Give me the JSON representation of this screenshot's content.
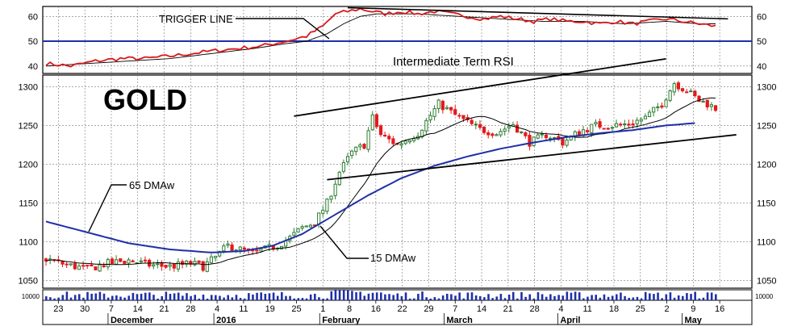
{
  "chart_data": {
    "type": "candlestick",
    "title": "GOLD",
    "colors": {
      "up": "#2e7d32",
      "down": "#e31a1c",
      "ma65": "#1f2fa8",
      "ma15": "#000000",
      "rsi": "#d7191c",
      "trigger": "#000000",
      "volume": "#1f2fa8",
      "rsi_level": "#1f2fa8"
    },
    "rsi_panel": {
      "label": "Intermediate Term RSI",
      "trigger_label": "TRIGGER LINE",
      "ticks": [
        "40",
        "50",
        "60"
      ],
      "ylim": [
        37,
        64
      ],
      "level": 50
    },
    "price_panel": {
      "ticks": [
        "1050",
        "1100",
        "1150",
        "1200",
        "1250",
        "1300"
      ],
      "ylim": [
        1040,
        1315
      ],
      "annotations": {
        "ma65": "65 DMAw",
        "ma15": "15 DMAw"
      }
    },
    "volume_panel": {
      "tick_left": "10000",
      "tick_right": "10000"
    },
    "x_axis": {
      "day_labels": [
        "23",
        "30",
        "7",
        "14",
        "21",
        "28",
        "4",
        "11",
        "19",
        "25",
        "1",
        "8",
        "16",
        "22",
        "29",
        "7",
        "14",
        "21",
        "28",
        "4",
        "11",
        "18",
        "25",
        "2",
        "9",
        "16"
      ],
      "month_labels": [
        "December",
        "2016",
        "February",
        "March",
        "April",
        "May"
      ]
    },
    "ohlc_anchors": [
      [
        0,
        1078
      ],
      [
        5,
        1070
      ],
      [
        10,
        1065
      ],
      [
        15,
        1072
      ],
      [
        20,
        1076
      ],
      [
        25,
        1070
      ],
      [
        30,
        1068
      ],
      [
        35,
        1072
      ],
      [
        38,
        1068
      ],
      [
        41,
        1080
      ],
      [
        44,
        1095
      ],
      [
        47,
        1090
      ],
      [
        50,
        1085
      ],
      [
        53,
        1090
      ],
      [
        56,
        1095
      ],
      [
        59,
        1105
      ],
      [
        62,
        1118
      ],
      [
        65,
        1125
      ],
      [
        68,
        1150
      ],
      [
        71,
        1190
      ],
      [
        74,
        1215
      ],
      [
        77,
        1225
      ],
      [
        79,
        1260
      ],
      [
        81,
        1238
      ],
      [
        85,
        1225
      ],
      [
        90,
        1240
      ],
      [
        95,
        1278
      ],
      [
        100,
        1260
      ],
      [
        105,
        1245
      ],
      [
        109,
        1240
      ],
      [
        113,
        1252
      ],
      [
        117,
        1228
      ],
      [
        121,
        1238
      ],
      [
        125,
        1228
      ],
      [
        129,
        1242
      ],
      [
        133,
        1250
      ],
      [
        137,
        1250
      ],
      [
        141,
        1252
      ],
      [
        145,
        1260
      ],
      [
        149,
        1278
      ],
      [
        152,
        1305
      ],
      [
        155,
        1295
      ],
      [
        158,
        1282
      ],
      [
        160,
        1278
      ],
      [
        162,
        1272
      ]
    ],
    "ma65_anchors": [
      [
        0,
        1126
      ],
      [
        10,
        1112
      ],
      [
        20,
        1098
      ],
      [
        30,
        1090
      ],
      [
        40,
        1086
      ],
      [
        48,
        1088
      ],
      [
        55,
        1095
      ],
      [
        62,
        1110
      ],
      [
        70,
        1135
      ],
      [
        78,
        1160
      ],
      [
        86,
        1182
      ],
      [
        94,
        1198
      ],
      [
        102,
        1210
      ],
      [
        110,
        1220
      ],
      [
        118,
        1228
      ],
      [
        126,
        1235
      ],
      [
        134,
        1240
      ],
      [
        142,
        1244
      ],
      [
        150,
        1250
      ],
      [
        157,
        1253
      ]
    ],
    "rsi_anchors": [
      [
        0,
        41
      ],
      [
        6,
        40
      ],
      [
        12,
        42
      ],
      [
        18,
        43
      ],
      [
        24,
        43
      ],
      [
        30,
        44
      ],
      [
        35,
        45
      ],
      [
        40,
        46
      ],
      [
        46,
        47
      ],
      [
        52,
        48
      ],
      [
        58,
        50
      ],
      [
        63,
        52
      ],
      [
        67,
        56
      ],
      [
        70,
        61
      ],
      [
        73,
        62
      ],
      [
        76,
        63
      ],
      [
        79,
        62
      ],
      [
        82,
        61
      ],
      [
        86,
        62
      ],
      [
        90,
        61
      ],
      [
        94,
        62
      ],
      [
        98,
        61
      ],
      [
        102,
        60
      ],
      [
        106,
        59
      ],
      [
        110,
        60
      ],
      [
        114,
        59
      ],
      [
        118,
        58
      ],
      [
        122,
        59
      ],
      [
        126,
        58
      ],
      [
        130,
        58
      ],
      [
        134,
        57
      ],
      [
        138,
        58
      ],
      [
        142,
        57
      ],
      [
        146,
        58
      ],
      [
        150,
        59
      ],
      [
        154,
        58
      ],
      [
        158,
        57
      ],
      [
        162,
        56
      ]
    ],
    "trigger_anchors": [
      [
        0,
        40
      ],
      [
        10,
        41
      ],
      [
        20,
        42
      ],
      [
        30,
        43
      ],
      [
        40,
        45
      ],
      [
        50,
        47
      ],
      [
        58,
        49
      ],
      [
        63,
        50
      ],
      [
        68,
        53
      ],
      [
        72,
        57
      ],
      [
        76,
        60
      ],
      [
        80,
        61
      ],
      [
        90,
        61
      ],
      [
        100,
        60
      ],
      [
        110,
        59
      ],
      [
        120,
        58
      ],
      [
        130,
        58
      ],
      [
        140,
        57
      ],
      [
        150,
        58
      ],
      [
        158,
        57
      ],
      [
        162,
        57
      ]
    ],
    "trend_lines": {
      "rsi_upper": [
        [
          73,
          63.5
        ],
        [
          165,
          59
        ]
      ],
      "price_upper": [
        [
          60,
          1262
        ],
        [
          150,
          1336
        ]
      ],
      "price_lower": [
        [
          68,
          1180
        ],
        [
          167,
          1238
        ]
      ]
    },
    "grid": true,
    "legend": "none"
  }
}
